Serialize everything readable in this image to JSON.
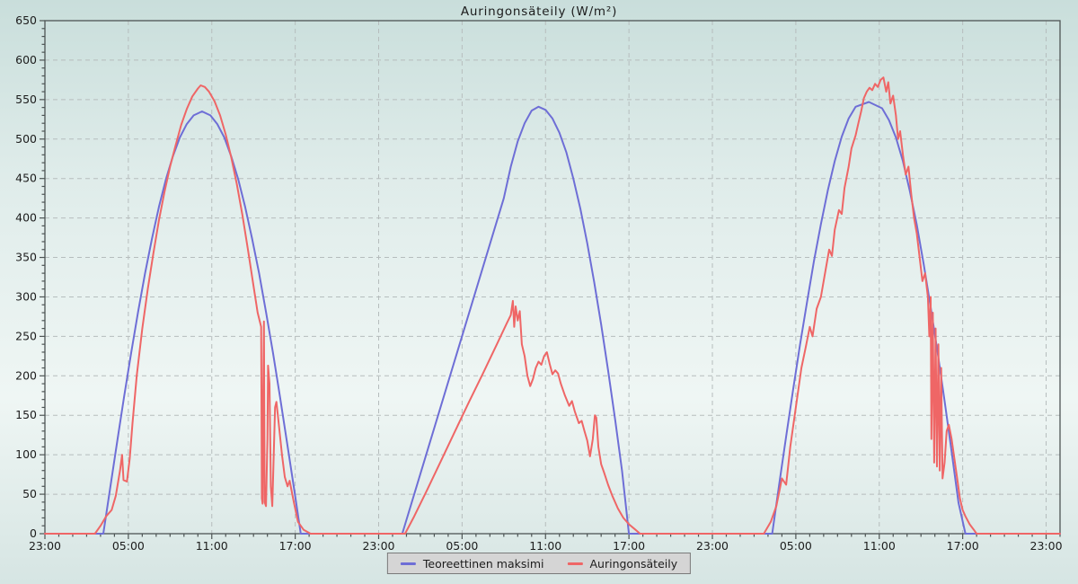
{
  "title": "Auringonsäteily (W/m²)",
  "legend": {
    "items": [
      {
        "label": "Teoreettinen maksimi",
        "color": "#6e6ed6"
      },
      {
        "label": "Auringonsäteily",
        "color": "#ef6666"
      }
    ]
  },
  "colors": {
    "frame": "#4d5454",
    "grid": "#b6bdbd",
    "tick_text": "#1c1c1c",
    "series_blue": "#6e6ed6",
    "series_red": "#ef6666",
    "legend_bg": "#d5d5d5",
    "legend_border": "#7a7a7a"
  },
  "chart_data": {
    "type": "line",
    "title": "Auringonsäteily (W/m²)",
    "xlabel": "",
    "ylabel": "",
    "grid": true,
    "legend_position": "bottom",
    "x_axis": {
      "unit": "time (hours over 3 days, starting 23:00)",
      "span_hours": 73,
      "major_tick_every_h": 6,
      "minor_tick_every_h": 1,
      "tick_labels": [
        "23:00",
        "05:00",
        "11:00",
        "17:00",
        "23:00",
        "05:00",
        "11:00",
        "17:00",
        "23:00",
        "05:00",
        "11:00",
        "17:00",
        "23:00"
      ]
    },
    "y_axis": {
      "min": 0,
      "max": 650,
      "major_step": 50,
      "minor_step": 10,
      "tick_labels": [
        "0",
        "50",
        "100",
        "150",
        "200",
        "250",
        "300",
        "350",
        "400",
        "450",
        "500",
        "550",
        "600",
        "650"
      ]
    },
    "series": [
      {
        "name": "Teoreettinen maksimi",
        "color": "#6e6ed6",
        "points": [
          [
            0,
            0
          ],
          [
            4.2,
            0
          ],
          [
            4.7,
            59
          ],
          [
            5.2,
            117
          ],
          [
            5.7,
            174
          ],
          [
            6.2,
            229
          ],
          [
            6.7,
            281
          ],
          [
            7.2,
            330
          ],
          [
            7.7,
            374
          ],
          [
            8.2,
            414
          ],
          [
            8.7,
            449
          ],
          [
            9.2,
            478
          ],
          [
            9.7,
            502
          ],
          [
            10.2,
            519
          ],
          [
            10.7,
            530
          ],
          [
            11.3,
            535
          ],
          [
            11.9,
            530
          ],
          [
            12.4,
            519
          ],
          [
            12.9,
            502
          ],
          [
            13.4,
            478
          ],
          [
            13.9,
            449
          ],
          [
            14.4,
            414
          ],
          [
            14.9,
            374
          ],
          [
            15.4,
            330
          ],
          [
            15.9,
            281
          ],
          [
            16.4,
            229
          ],
          [
            16.9,
            174
          ],
          [
            17.4,
            117
          ],
          [
            17.9,
            59
          ],
          [
            18.4,
            0
          ],
          [
            25.7,
            0
          ],
          [
            33.0,
            425
          ],
          [
            33.5,
            465
          ],
          [
            34.0,
            497
          ],
          [
            34.5,
            520
          ],
          [
            35.0,
            536
          ],
          [
            35.5,
            541
          ],
          [
            36.0,
            537
          ],
          [
            36.5,
            526
          ],
          [
            37.0,
            508
          ],
          [
            37.5,
            483
          ],
          [
            38.0,
            450
          ],
          [
            38.5,
            412
          ],
          [
            39.0,
            368
          ],
          [
            39.5,
            319
          ],
          [
            40.0,
            265
          ],
          [
            40.5,
            207
          ],
          [
            41.0,
            145
          ],
          [
            41.5,
            80
          ],
          [
            42.0,
            0
          ],
          [
            52.3,
            0
          ],
          [
            52.8,
            62
          ],
          [
            53.3,
            123
          ],
          [
            53.8,
            182
          ],
          [
            54.3,
            239
          ],
          [
            54.8,
            293
          ],
          [
            55.3,
            345
          ],
          [
            55.8,
            392
          ],
          [
            56.3,
            435
          ],
          [
            56.8,
            472
          ],
          [
            57.3,
            503
          ],
          [
            57.8,
            526
          ],
          [
            58.3,
            541
          ],
          [
            59.25,
            547
          ],
          [
            60.2,
            539
          ],
          [
            60.7,
            524
          ],
          [
            61.2,
            502
          ],
          [
            61.7,
            472
          ],
          [
            62.2,
            434
          ],
          [
            62.7,
            391
          ],
          [
            63.2,
            341
          ],
          [
            63.7,
            287
          ],
          [
            64.2,
            229
          ],
          [
            64.7,
            168
          ],
          [
            65.2,
            104
          ],
          [
            65.7,
            39
          ],
          [
            66.2,
            0
          ],
          [
            73,
            0
          ]
        ]
      },
      {
        "name": "Auringonsäteily",
        "color": "#ef6666",
        "points": [
          [
            0,
            0
          ],
          [
            3.6,
            0
          ],
          [
            4.0,
            10
          ],
          [
            4.4,
            22
          ],
          [
            4.8,
            30
          ],
          [
            5.1,
            48
          ],
          [
            5.4,
            80
          ],
          [
            5.55,
            100
          ],
          [
            5.65,
            68
          ],
          [
            5.9,
            66
          ],
          [
            6.1,
            95
          ],
          [
            6.3,
            140
          ],
          [
            6.6,
            200
          ],
          [
            7.0,
            260
          ],
          [
            7.4,
            310
          ],
          [
            7.8,
            355
          ],
          [
            8.2,
            397
          ],
          [
            8.6,
            433
          ],
          [
            9.0,
            465
          ],
          [
            9.4,
            492
          ],
          [
            9.8,
            518
          ],
          [
            10.2,
            538
          ],
          [
            10.6,
            554
          ],
          [
            11.0,
            564
          ],
          [
            11.2,
            568
          ],
          [
            11.5,
            566
          ],
          [
            11.8,
            560
          ],
          [
            12.2,
            548
          ],
          [
            12.6,
            530
          ],
          [
            13.0,
            506
          ],
          [
            13.4,
            477
          ],
          [
            13.8,
            443
          ],
          [
            14.2,
            404
          ],
          [
            14.6,
            360
          ],
          [
            15.0,
            314
          ],
          [
            15.3,
            280
          ],
          [
            15.55,
            262
          ],
          [
            15.6,
            45
          ],
          [
            15.65,
            38
          ],
          [
            15.7,
            180
          ],
          [
            15.75,
            269
          ],
          [
            15.8,
            40
          ],
          [
            15.9,
            35
          ],
          [
            16.0,
            120
          ],
          [
            16.05,
            213
          ],
          [
            16.15,
            190
          ],
          [
            16.25,
            60
          ],
          [
            16.35,
            35
          ],
          [
            16.55,
            160
          ],
          [
            16.65,
            167
          ],
          [
            16.75,
            150
          ],
          [
            16.9,
            125
          ],
          [
            17.05,
            100
          ],
          [
            17.25,
            72
          ],
          [
            17.45,
            60
          ],
          [
            17.6,
            67
          ],
          [
            17.9,
            40
          ],
          [
            18.2,
            15
          ],
          [
            18.6,
            5
          ],
          [
            19.1,
            0
          ],
          [
            25.9,
            0
          ],
          [
            26.5,
            20
          ],
          [
            27.5,
            56
          ],
          [
            28.5,
            93
          ],
          [
            29.5,
            130
          ],
          [
            30.5,
            167
          ],
          [
            31.5,
            203
          ],
          [
            32.5,
            240
          ],
          [
            33.2,
            266
          ],
          [
            33.5,
            277
          ],
          [
            33.65,
            295
          ],
          [
            33.75,
            262
          ],
          [
            33.85,
            288
          ],
          [
            34.0,
            270
          ],
          [
            34.15,
            282
          ],
          [
            34.3,
            240
          ],
          [
            34.5,
            225
          ],
          [
            34.7,
            200
          ],
          [
            34.9,
            187
          ],
          [
            35.1,
            196
          ],
          [
            35.3,
            210
          ],
          [
            35.5,
            218
          ],
          [
            35.7,
            214
          ],
          [
            35.9,
            225
          ],
          [
            36.1,
            230
          ],
          [
            36.3,
            215
          ],
          [
            36.5,
            202
          ],
          [
            36.7,
            207
          ],
          [
            36.9,
            203
          ],
          [
            37.1,
            190
          ],
          [
            37.4,
            175
          ],
          [
            37.7,
            162
          ],
          [
            37.9,
            168
          ],
          [
            38.1,
            155
          ],
          [
            38.4,
            140
          ],
          [
            38.6,
            143
          ],
          [
            38.8,
            130
          ],
          [
            39.0,
            118
          ],
          [
            39.2,
            98
          ],
          [
            39.4,
            120
          ],
          [
            39.55,
            150
          ],
          [
            39.65,
            147
          ],
          [
            39.8,
            110
          ],
          [
            40.0,
            88
          ],
          [
            40.2,
            78
          ],
          [
            40.5,
            62
          ],
          [
            40.8,
            48
          ],
          [
            41.2,
            32
          ],
          [
            41.6,
            20
          ],
          [
            42.0,
            12
          ],
          [
            42.4,
            6
          ],
          [
            42.8,
            0
          ],
          [
            51.7,
            0
          ],
          [
            52.2,
            15
          ],
          [
            52.6,
            35
          ],
          [
            53.0,
            70
          ],
          [
            53.3,
            62
          ],
          [
            53.6,
            110
          ],
          [
            54.0,
            160
          ],
          [
            54.4,
            210
          ],
          [
            54.7,
            235
          ],
          [
            55.0,
            262
          ],
          [
            55.2,
            250
          ],
          [
            55.5,
            285
          ],
          [
            55.8,
            300
          ],
          [
            56.1,
            330
          ],
          [
            56.4,
            360
          ],
          [
            56.6,
            352
          ],
          [
            56.8,
            385
          ],
          [
            57.1,
            410
          ],
          [
            57.3,
            405
          ],
          [
            57.5,
            438
          ],
          [
            57.8,
            465
          ],
          [
            58.0,
            488
          ],
          [
            58.3,
            505
          ],
          [
            58.5,
            520
          ],
          [
            58.7,
            535
          ],
          [
            58.9,
            552
          ],
          [
            59.1,
            560
          ],
          [
            59.3,
            565
          ],
          [
            59.5,
            562
          ],
          [
            59.7,
            570
          ],
          [
            59.9,
            566
          ],
          [
            60.1,
            575
          ],
          [
            60.3,
            578
          ],
          [
            60.5,
            560
          ],
          [
            60.65,
            572
          ],
          [
            60.8,
            545
          ],
          [
            61.0,
            555
          ],
          [
            61.2,
            530
          ],
          [
            61.35,
            500
          ],
          [
            61.5,
            510
          ],
          [
            61.7,
            480
          ],
          [
            61.9,
            455
          ],
          [
            62.1,
            465
          ],
          [
            62.3,
            430
          ],
          [
            62.5,
            400
          ],
          [
            62.7,
            380
          ],
          [
            62.9,
            350
          ],
          [
            63.1,
            320
          ],
          [
            63.3,
            330
          ],
          [
            63.5,
            300
          ],
          [
            63.6,
            250
          ],
          [
            63.7,
            300
          ],
          [
            63.75,
            120
          ],
          [
            63.85,
            280
          ],
          [
            63.95,
            90
          ],
          [
            64.05,
            260
          ],
          [
            64.15,
            85
          ],
          [
            64.25,
            240
          ],
          [
            64.35,
            80
          ],
          [
            64.45,
            210
          ],
          [
            64.55,
            70
          ],
          [
            64.7,
            90
          ],
          [
            64.85,
            130
          ],
          [
            65.0,
            138
          ],
          [
            65.2,
            120
          ],
          [
            65.4,
            95
          ],
          [
            65.6,
            70
          ],
          [
            65.8,
            45
          ],
          [
            66.0,
            30
          ],
          [
            66.2,
            22
          ],
          [
            66.5,
            12
          ],
          [
            66.8,
            5
          ],
          [
            67.0,
            0
          ],
          [
            73,
            0
          ]
        ]
      }
    ]
  }
}
